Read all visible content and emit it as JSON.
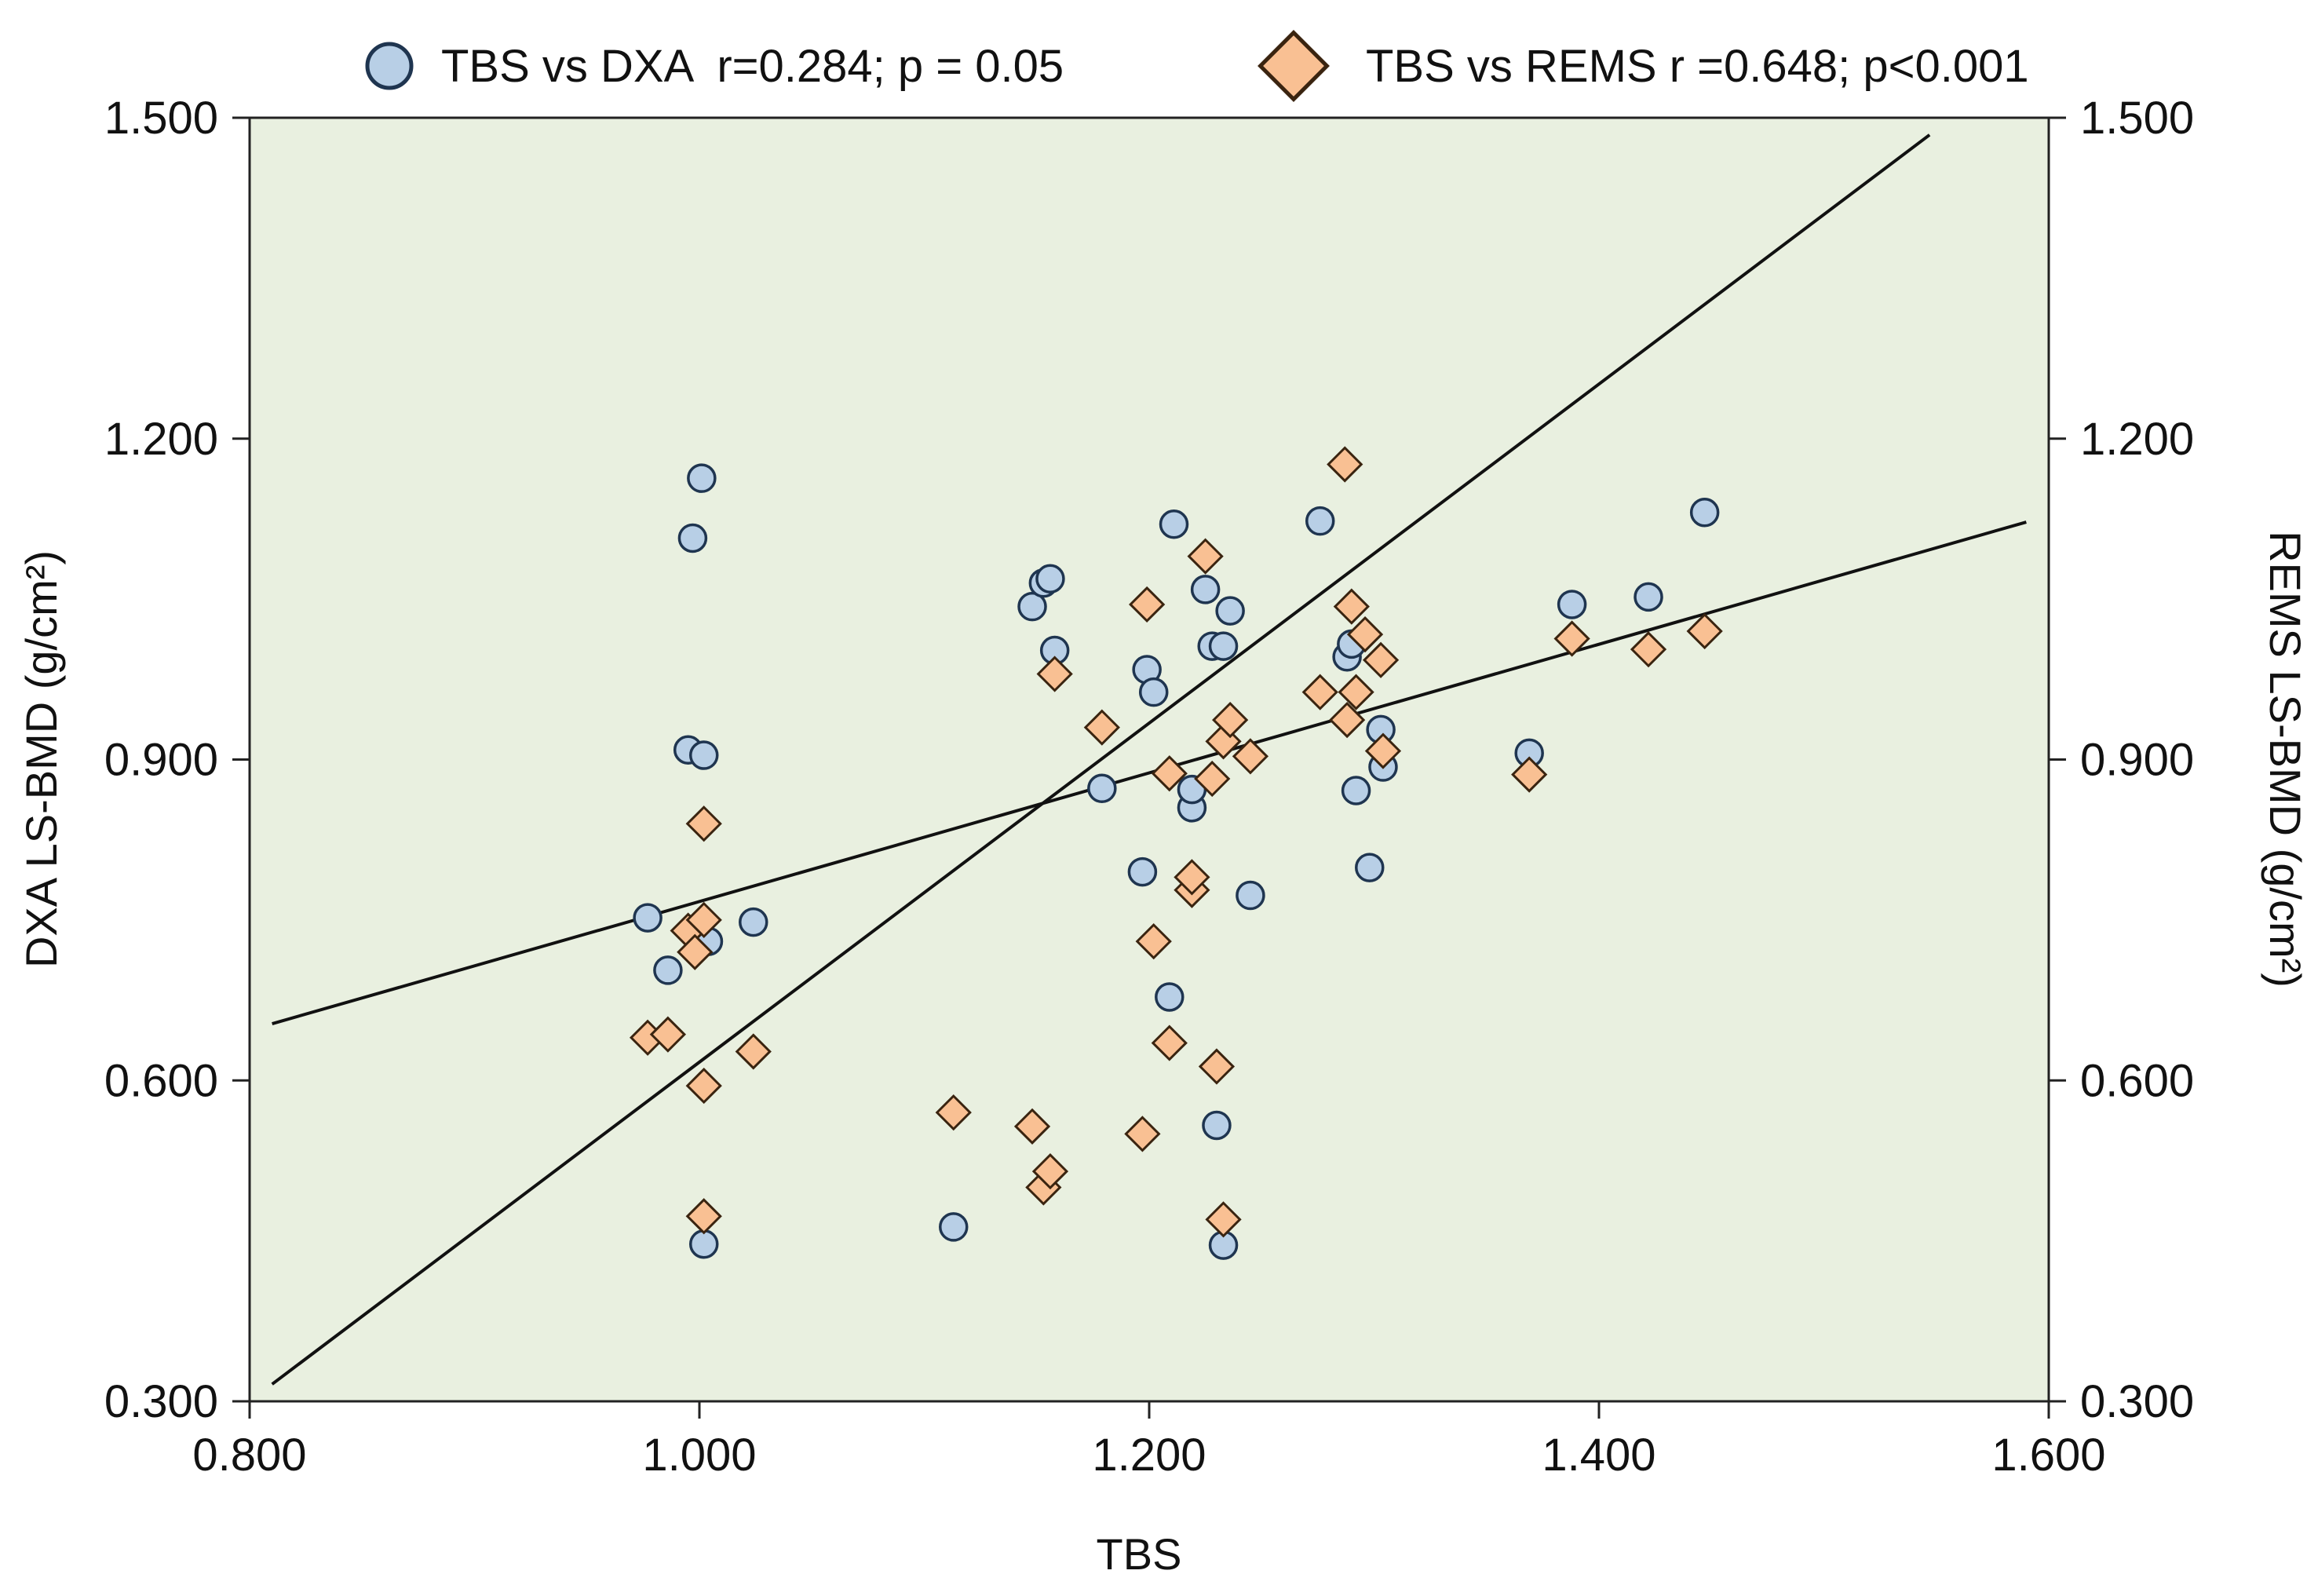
{
  "chart_data": {
    "type": "scatter",
    "title": "",
    "xlabel": "TBS",
    "ylabel_left": "DXA LS-BMD (g/cm²)",
    "ylabel_right": "REMS LS-BMD (g/cm²)",
    "xlim": [
      0.8,
      1.6
    ],
    "ylim_left": [
      0.3,
      1.5
    ],
    "ylim_right": [
      0.3,
      1.5
    ],
    "x_ticks": [
      "0.800",
      "1.000",
      "1.200",
      "1.400",
      "1.600"
    ],
    "y_ticks_left": [
      "0.300",
      "0.600",
      "0.900",
      "1.200",
      "1.500"
    ],
    "y_ticks_right": [
      "0.300",
      "0.600",
      "0.900",
      "1.200",
      "1.500"
    ],
    "legend_position": "top",
    "colors": {
      "plot_background": "#e9f0e0",
      "dxa_fill": "#b8cfe6",
      "dxa_stroke": "#1f3550",
      "rems_fill": "#f9c093",
      "rems_stroke": "#3a2410",
      "line": "#111111"
    },
    "series": [
      {
        "name": "TBS vs DXA",
        "legend_label": "TBS vs DXA  r=0.284; p = 0.05",
        "marker": "circle",
        "axis": "left",
        "points": [
          [
            0.977,
            0.752
          ],
          [
            0.986,
            0.703
          ],
          [
            0.995,
            0.909
          ],
          [
            0.997,
            1.107
          ],
          [
            1.001,
            1.163
          ],
          [
            1.002,
            0.904
          ],
          [
            1.004,
            0.73
          ],
          [
            1.002,
            0.447
          ],
          [
            1.024,
            0.748
          ],
          [
            1.113,
            0.463
          ],
          [
            1.148,
            1.043
          ],
          [
            1.153,
            1.065
          ],
          [
            1.156,
            1.069
          ],
          [
            1.158,
            1.002
          ],
          [
            1.179,
            0.873
          ],
          [
            1.197,
            0.795
          ],
          [
            1.199,
            0.984
          ],
          [
            1.202,
            0.963
          ],
          [
            1.209,
            0.678
          ],
          [
            1.211,
            1.12
          ],
          [
            1.219,
            0.855
          ],
          [
            1.219,
            0.872
          ],
          [
            1.225,
            1.059
          ],
          [
            1.228,
            1.006
          ],
          [
            1.23,
            0.558
          ],
          [
            1.233,
            1.006
          ],
          [
            1.233,
            0.446
          ],
          [
            1.236,
            1.039
          ],
          [
            1.245,
            0.773
          ],
          [
            1.276,
            1.123
          ],
          [
            1.288,
            0.996
          ],
          [
            1.29,
            1.008
          ],
          [
            1.292,
            0.871
          ],
          [
            1.298,
            0.799
          ],
          [
            1.303,
            0.928
          ],
          [
            1.304,
            0.893
          ],
          [
            1.369,
            0.906
          ],
          [
            1.388,
            1.045
          ],
          [
            1.422,
            1.052
          ],
          [
            1.447,
            1.131
          ]
        ],
        "fit_line": {
          "x": [
            0.81,
            1.59
          ],
          "y": [
            0.653,
            1.122
          ]
        }
      },
      {
        "name": "TBS vs REMS",
        "legend_label": "TBS vs REMS r =0.648; p<0.001",
        "marker": "diamond",
        "axis": "right",
        "points": [
          [
            0.977,
            0.64
          ],
          [
            0.986,
            0.643
          ],
          [
            0.995,
            0.74
          ],
          [
            0.998,
            0.72
          ],
          [
            1.002,
            0.75
          ],
          [
            1.002,
            0.84
          ],
          [
            1.002,
            0.595
          ],
          [
            1.002,
            0.473
          ],
          [
            1.024,
            0.627
          ],
          [
            1.113,
            0.57
          ],
          [
            1.148,
            0.557
          ],
          [
            1.153,
            0.5
          ],
          [
            1.156,
            0.515
          ],
          [
            1.158,
            0.98
          ],
          [
            1.179,
            0.93
          ],
          [
            1.197,
            0.55
          ],
          [
            1.199,
            1.045
          ],
          [
            1.202,
            0.73
          ],
          [
            1.209,
            0.635
          ],
          [
            1.209,
            0.887
          ],
          [
            1.219,
            0.778
          ],
          [
            1.219,
            0.79
          ],
          [
            1.225,
            1.09
          ],
          [
            1.228,
            0.882
          ],
          [
            1.23,
            0.613
          ],
          [
            1.233,
            0.917
          ],
          [
            1.233,
            0.47
          ],
          [
            1.236,
            0.937
          ],
          [
            1.245,
            0.903
          ],
          [
            1.276,
            0.963
          ],
          [
            1.287,
            1.176
          ],
          [
            1.288,
            0.937
          ],
          [
            1.29,
            1.043
          ],
          [
            1.292,
            0.963
          ],
          [
            1.296,
            1.017
          ],
          [
            1.303,
            0.993
          ],
          [
            1.304,
            0.908
          ],
          [
            1.369,
            0.886
          ],
          [
            1.388,
            1.013
          ],
          [
            1.422,
            1.003
          ],
          [
            1.447,
            1.02
          ]
        ],
        "fit_line": {
          "x": [
            0.81,
            1.547
          ],
          "y": [
            0.316,
            1.484
          ]
        }
      }
    ]
  }
}
